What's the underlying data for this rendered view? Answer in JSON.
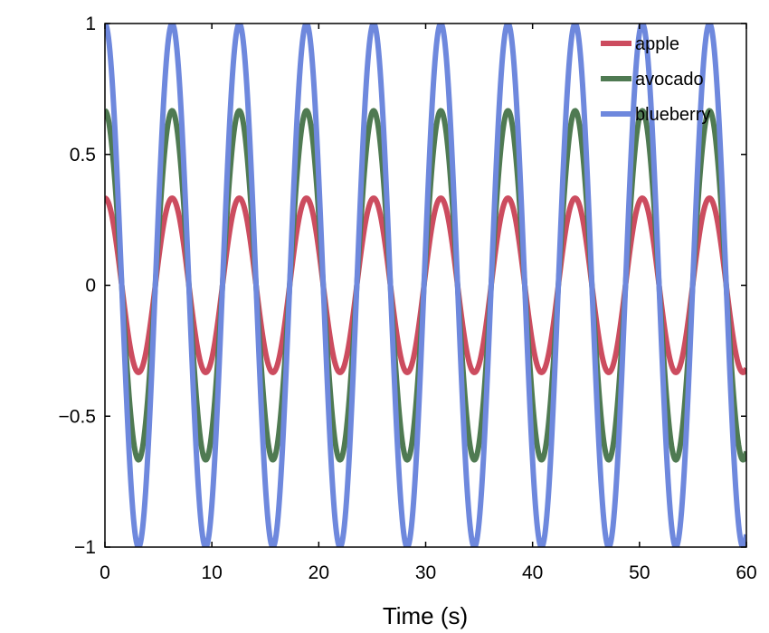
{
  "chart_data": {
    "type": "line",
    "xlabel": "Time (s)",
    "ylabel": "",
    "xlim": [
      0,
      60
    ],
    "ylim": [
      -1,
      1
    ],
    "xticks": [
      0,
      10,
      20,
      30,
      40,
      50,
      60
    ],
    "xtick_labels": [
      "0",
      "10",
      "20",
      "30",
      "40",
      "50",
      "60"
    ],
    "yticks": [
      -1,
      -0.5,
      0,
      0.5,
      1
    ],
    "ytick_labels": [
      "−1",
      "−0.5",
      "0",
      "0.5",
      "1"
    ],
    "grid": false,
    "legend_position": "top-right",
    "series": [
      {
        "name": "apple",
        "color": "#cc4c5f",
        "amplitude": 0.333,
        "period_s": 6.283,
        "function": "cos"
      },
      {
        "name": "avocado",
        "color": "#4f7a52",
        "amplitude": 0.667,
        "period_s": 6.283,
        "function": "cos"
      },
      {
        "name": "blueberry",
        "color": "#6e88dd",
        "amplitude": 1.0,
        "period_s": 6.283,
        "function": "cos"
      }
    ]
  }
}
